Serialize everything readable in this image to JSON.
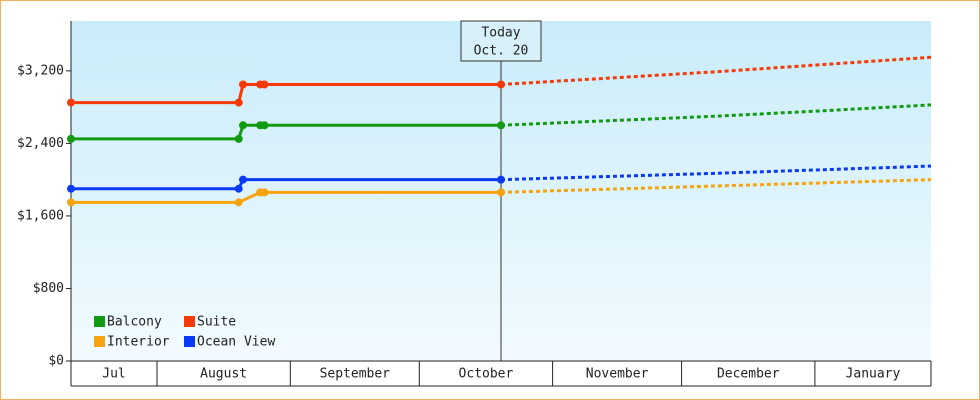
{
  "chart_data": {
    "type": "line",
    "annotation": {
      "x": 100,
      "lines": [
        "Today",
        "Oct. 20"
      ]
    },
    "categories": [
      "Jul",
      "August",
      "September",
      "October",
      "November",
      "December",
      "January"
    ],
    "xticks": [
      0,
      20,
      51,
      81,
      112,
      142,
      173,
      200
    ],
    "xlim": [
      0,
      200
    ],
    "ylim": [
      0,
      3750
    ],
    "yticks": [
      {
        "value": 0,
        "label": "$0"
      },
      {
        "value": 800,
        "label": "$800"
      },
      {
        "value": 1600,
        "label": "$1,600"
      },
      {
        "value": 2400,
        "label": "$2,400"
      },
      {
        "value": 3200,
        "label": "$3,200"
      }
    ],
    "legend": "bottom-left",
    "series": [
      {
        "name": "Balcony",
        "color": "#129a12",
        "x": [
          0,
          39,
          40,
          44,
          45,
          100
        ],
        "values": [
          2450,
          2450,
          2600,
          2600,
          2600,
          2600
        ],
        "forecast_x": [
          100,
          125,
          150,
          175,
          200
        ],
        "forecast_values": [
          2600,
          2650,
          2700,
          2760,
          2825
        ]
      },
      {
        "name": "Suite",
        "color": "#f53a0a",
        "x": [
          0,
          39,
          40,
          44,
          45,
          100
        ],
        "values": [
          2850,
          2850,
          3050,
          3050,
          3050,
          3050
        ],
        "forecast_x": [
          100,
          125,
          150,
          175,
          200
        ],
        "forecast_values": [
          3050,
          3120,
          3190,
          3270,
          3350
        ]
      },
      {
        "name": "Interior",
        "color": "#f5a30f",
        "x": [
          0,
          39,
          44,
          45,
          100
        ],
        "values": [
          1750,
          1750,
          1860,
          1860,
          1860
        ],
        "forecast_x": [
          100,
          125,
          150,
          175,
          200
        ],
        "forecast_values": [
          1860,
          1895,
          1930,
          1965,
          2000
        ]
      },
      {
        "name": "Ocean View",
        "color": "#0a3af5",
        "x": [
          0,
          39,
          40,
          100
        ],
        "values": [
          1900,
          1900,
          2000,
          2000
        ],
        "forecast_x": [
          100,
          125,
          150,
          175,
          200
        ],
        "forecast_values": [
          2000,
          2035,
          2070,
          2110,
          2150
        ]
      }
    ]
  }
}
